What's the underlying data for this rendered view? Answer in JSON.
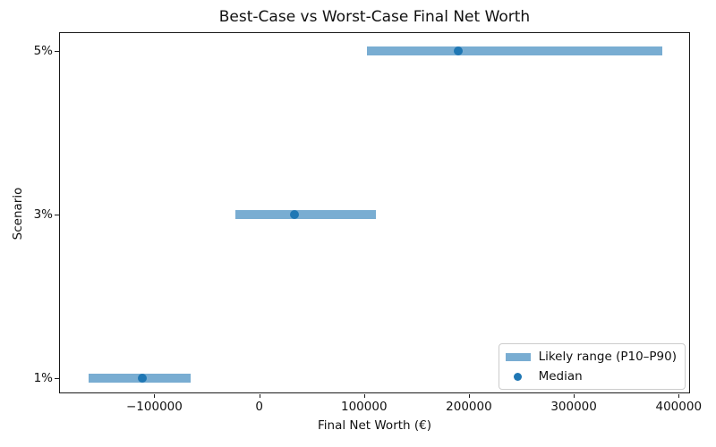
{
  "chart_data": {
    "type": "bar",
    "orientation": "horizontal",
    "title": "Best-Case vs Worst-Case Final Net Worth",
    "xlabel": "Final Net Worth (€)",
    "ylabel": "Scenario",
    "categories": [
      "1%",
      "3%",
      "5%"
    ],
    "series": [
      {
        "name": "Likely range (P10–P90)",
        "type": "range_bar",
        "p10": [
          -163000,
          -23000,
          103000
        ],
        "p90": [
          -65000,
          111500,
          384000
        ]
      },
      {
        "name": "Median",
        "type": "scatter",
        "values": [
          -111500,
          33500,
          190000
        ]
      }
    ],
    "xlim": [
      -190000,
      410000
    ],
    "ylim": [
      -0.09,
      2.11
    ],
    "xticks": {
      "values": [
        -100000,
        0,
        100000,
        200000,
        300000,
        400000
      ],
      "labels": [
        "−100000",
        "0",
        "100000",
        "200000",
        "300000",
        "400000"
      ]
    },
    "grid": false,
    "legend": {
      "position": "lower right",
      "entries": [
        "Likely range (P10–P90)",
        "Median"
      ]
    },
    "colors": {
      "range_bar": "#79add2",
      "median_dot": "#1f77b4",
      "text": "#111111",
      "spine": "#1a1a1a",
      "legend_border": "#cccccc",
      "background": "#ffffff"
    }
  }
}
